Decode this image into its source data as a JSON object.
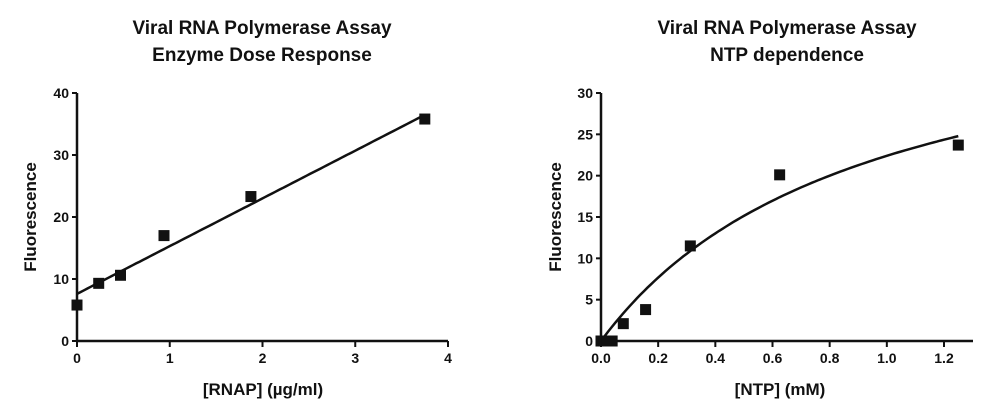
{
  "chart_data": [
    {
      "type": "scatter",
      "title": [
        "Viral RNA Polymerase Assay",
        "Enzyme Dose Response"
      ],
      "xlabel": "[RNAP] (µg/ml)",
      "ylabel": "Fluorescence",
      "xlim": [
        0,
        4
      ],
      "ylim": [
        0,
        40
      ],
      "xticks": [
        "0",
        "1",
        "2",
        "3",
        "4"
      ],
      "yticks": [
        "0",
        "10",
        "20",
        "30",
        "40"
      ],
      "grid": false,
      "series": [
        {
          "x": [
            0,
            0.234,
            0.469,
            0.938,
            1.875,
            3.75
          ],
          "y": [
            5.8,
            9.3,
            10.6,
            17.0,
            23.3,
            35.8
          ],
          "marker": "square"
        }
      ],
      "fit": {
        "type": "linear",
        "intercept": 7.6,
        "slope": 7.7,
        "x_range": [
          0,
          3.75
        ]
      },
      "color": "#111111"
    },
    {
      "type": "scatter",
      "title": [
        "Viral RNA Polymerase Assay",
        "NTP dependence"
      ],
      "xlabel": "[NTP] (mM)",
      "ylabel": "Fluorescence",
      "xlim": [
        0,
        1.3
      ],
      "ylim": [
        0,
        30
      ],
      "xticks": [
        "0.0",
        "0.2",
        "0.4",
        "0.6",
        "0.8",
        "1.0",
        "1.2"
      ],
      "yticks": [
        "0",
        "5",
        "10",
        "15",
        "20",
        "25",
        "30"
      ],
      "grid": false,
      "series": [
        {
          "x": [
            0,
            0.0098,
            0.0195,
            0.039,
            0.078,
            0.156,
            0.3125,
            0.625,
            1.25
          ],
          "y": [
            0,
            0,
            0,
            0,
            2.1,
            3.8,
            11.5,
            20.1,
            23.7
          ],
          "marker": "square"
        }
      ],
      "fit": {
        "type": "michaelis-menten",
        "vmax": 43.1,
        "km": 0.924,
        "x_range": [
          0,
          1.25
        ]
      },
      "color": "#111111"
    }
  ]
}
